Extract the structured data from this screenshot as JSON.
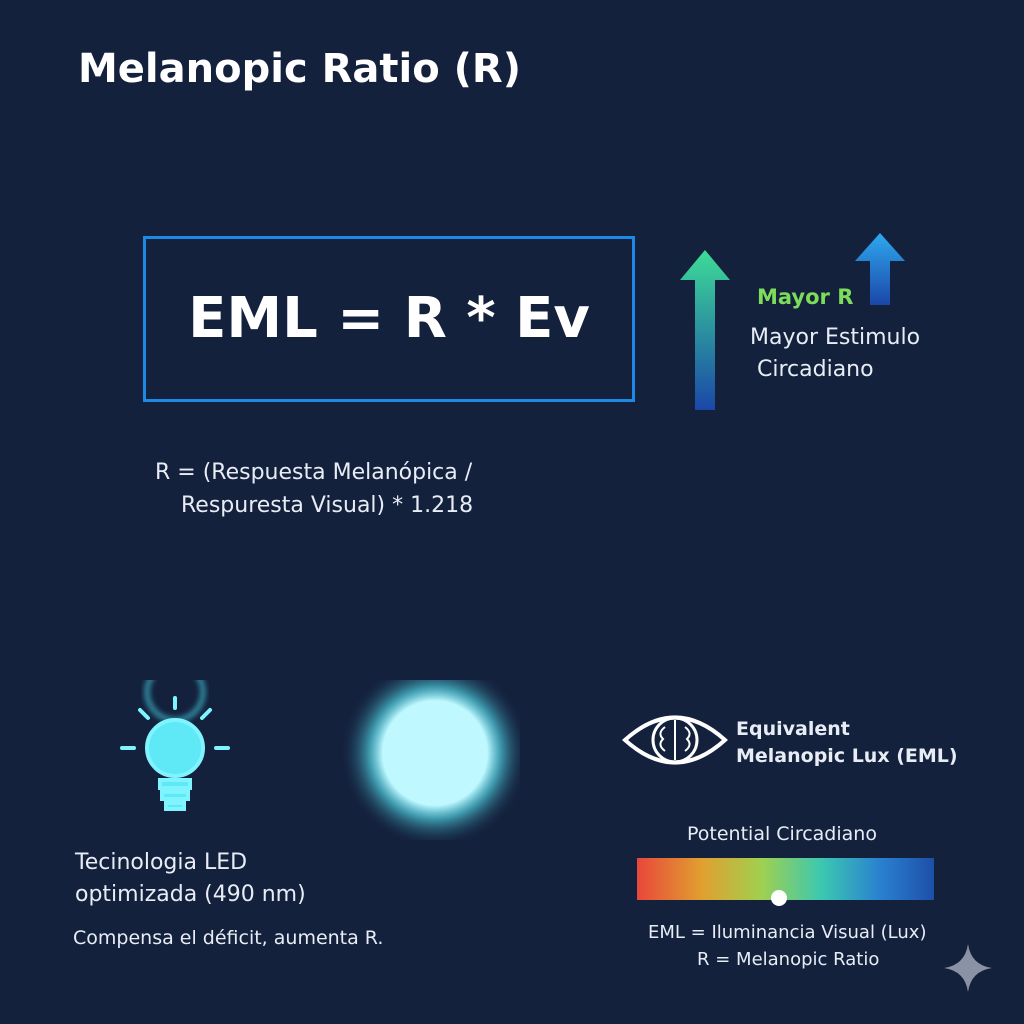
{
  "title": "Melanopic Ratio (R)",
  "formula": "EML = R * Ev",
  "indicator": {
    "label": "Mayor R",
    "lines": [
      "Mayor Estimulo",
      "Circadiano"
    ]
  },
  "r_definition": [
    "R = (Respuesta Melanópica /",
    "Respuresta Visual) * 1.218"
  ],
  "led": {
    "lines": [
      "Tecinologia LED",
      "optimizada (490 nm)"
    ],
    "caption": "Compensa el déficit, aumenta R."
  },
  "eye": {
    "lines": [
      "Equivalent",
      "Melanopic Lux (EML)"
    ]
  },
  "scale": {
    "title": "Potential Circadiano"
  },
  "footnotes": [
    "EML = Iluminancia Visual (Lux)",
    "R = Melanopic Ratio"
  ]
}
